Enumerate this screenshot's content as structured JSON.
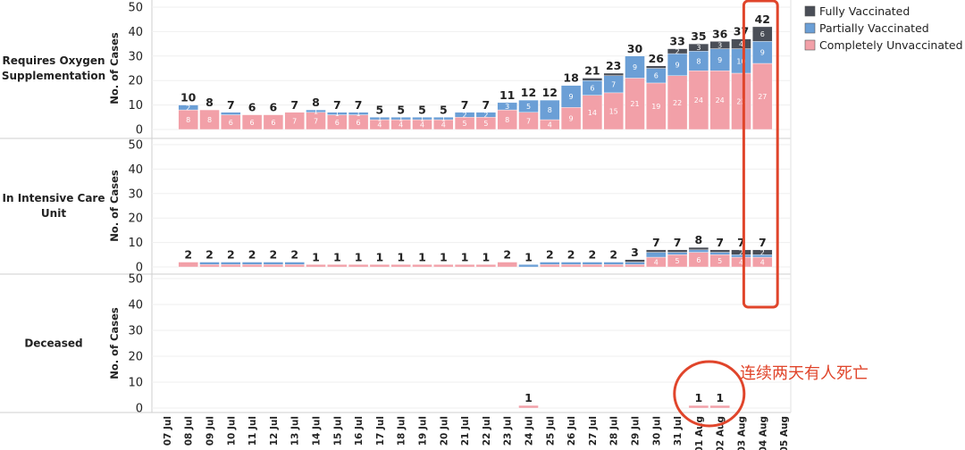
{
  "chart_data": {
    "type": "bar",
    "stacked": true,
    "ylabel": "No. of Cases",
    "ylim": [
      0,
      50
    ],
    "yticks": [
      0,
      10,
      20,
      30,
      40,
      50
    ],
    "grid": true,
    "legend_position": "top-right",
    "categories": [
      "07 Jul",
      "08 Jul",
      "09 Jul",
      "10 Jul",
      "11 Jul",
      "12 Jul",
      "13 Jul",
      "14 Jul",
      "15 Jul",
      "16 Jul",
      "17 Jul",
      "18 Jul",
      "19 Jul",
      "20 Jul",
      "21 Jul",
      "22 Jul",
      "23 Jul",
      "24 Jul",
      "25 Jul",
      "26 Jul",
      "27 Jul",
      "28 Jul",
      "29 Jul",
      "30 Jul",
      "31 Jul",
      "01 Aug",
      "02 Aug",
      "03 Aug",
      "04 Aug",
      "05 Aug"
    ],
    "series_meta": [
      {
        "name": "Fully Vaccinated",
        "color": "#4a4e57"
      },
      {
        "name": "Partially Vaccinated",
        "color": "#6b9fd6"
      },
      {
        "name": "Completely Unvaccinated",
        "color": "#f2a0a8"
      }
    ],
    "panels": [
      {
        "label": "Requires Oxygen\nSupplementation",
        "series": [
          {
            "name": "Completely Unvaccinated",
            "values": [
              0,
              8,
              8,
              6,
              6,
              6,
              7,
              7,
              6,
              6,
              4,
              4,
              4,
              4,
              5,
              5,
              8,
              7,
              4,
              9,
              14,
              15,
              21,
              19,
              22,
              24,
              24,
              23,
              27,
              0
            ]
          },
          {
            "name": "Partially Vaccinated",
            "values": [
              0,
              2,
              0,
              1,
              0,
              0,
              0,
              1,
              1,
              1,
              1,
              1,
              1,
              1,
              2,
              2,
              3,
              5,
              8,
              9,
              6,
              7,
              9,
              6,
              9,
              8,
              9,
              10,
              9,
              0
            ]
          },
          {
            "name": "Fully Vaccinated",
            "values": [
              0,
              0,
              0,
              0,
              0,
              0,
              0,
              0,
              0,
              0,
              0,
              0,
              0,
              0,
              0,
              0,
              0,
              0,
              0,
              0,
              1,
              1,
              0,
              1,
              2,
              3,
              3,
              4,
              6,
              0
            ]
          }
        ],
        "totals": [
          null,
          10,
          8,
          7,
          6,
          6,
          7,
          8,
          7,
          7,
          5,
          5,
          5,
          5,
          7,
          7,
          11,
          12,
          12,
          18,
          21,
          23,
          30,
          26,
          33,
          35,
          36,
          37,
          42,
          null
        ],
        "segment_labels": {
          "Completely Unvaccinated": [
            null,
            "8",
            "8",
            "6",
            "6",
            "6",
            "7",
            "7",
            "6",
            "6",
            "4",
            "4",
            "4",
            "4",
            "5",
            "5",
            "8",
            "7",
            "4",
            "9",
            "14",
            "15",
            "21",
            "19",
            "22",
            "24",
            "24",
            "23",
            "27",
            null
          ],
          "Partially Vaccinated": [
            null,
            "2",
            null,
            null,
            null,
            null,
            null,
            "1",
            "1",
            "1",
            "1",
            "1",
            "1",
            "1",
            "2",
            "2",
            "3",
            "5",
            "8",
            "9",
            "6",
            "7",
            "9",
            "6",
            "9",
            "8",
            "9",
            "10",
            "9",
            null
          ],
          "Fully Vaccinated": [
            null,
            null,
            null,
            null,
            null,
            null,
            null,
            null,
            null,
            null,
            null,
            null,
            null,
            null,
            null,
            null,
            null,
            null,
            null,
            null,
            null,
            null,
            null,
            null,
            "2",
            "3",
            "3",
            "4",
            "6",
            null
          ]
        }
      },
      {
        "label": "In Intensive Care\nUnit",
        "series": [
          {
            "name": "Completely Unvaccinated",
            "values": [
              0,
              2,
              1,
              1,
              1,
              1,
              1,
              1,
              1,
              1,
              1,
              1,
              1,
              1,
              1,
              1,
              2,
              0,
              1,
              1,
              1,
              1,
              1,
              4,
              5,
              6,
              5,
              4,
              4,
              0
            ]
          },
          {
            "name": "Partially Vaccinated",
            "values": [
              0,
              0,
              1,
              1,
              1,
              1,
              1,
              0,
              0,
              0,
              0,
              0,
              0,
              0,
              0,
              0,
              0,
              1,
              1,
              1,
              1,
              1,
              1,
              2,
              1,
              1,
              1,
              1,
              1,
              0
            ]
          },
          {
            "name": "Fully Vaccinated",
            "values": [
              0,
              0,
              0,
              0,
              0,
              0,
              0,
              0,
              0,
              0,
              0,
              0,
              0,
              0,
              0,
              0,
              0,
              0,
              0,
              0,
              0,
              0,
              1,
              1,
              1,
              1,
              1,
              2,
              2,
              0
            ]
          }
        ],
        "totals": [
          null,
          2,
          2,
          2,
          2,
          2,
          2,
          1,
          1,
          1,
          1,
          1,
          1,
          1,
          1,
          1,
          2,
          1,
          2,
          2,
          2,
          2,
          3,
          7,
          7,
          8,
          7,
          7,
          7,
          null
        ],
        "segment_labels": {
          "Completely Unvaccinated": [
            null,
            null,
            null,
            null,
            null,
            null,
            null,
            null,
            null,
            null,
            null,
            null,
            null,
            null,
            null,
            null,
            null,
            null,
            null,
            null,
            null,
            null,
            null,
            "4",
            "5",
            "6",
            "5",
            "4",
            "4",
            null
          ],
          "Partially Vaccinated": [
            null,
            null,
            null,
            null,
            null,
            null,
            null,
            null,
            null,
            null,
            null,
            null,
            null,
            null,
            null,
            null,
            null,
            null,
            null,
            null,
            null,
            null,
            null,
            null,
            null,
            null,
            null,
            null,
            null,
            null
          ],
          "Fully Vaccinated": [
            null,
            null,
            null,
            null,
            null,
            null,
            null,
            null,
            null,
            null,
            null,
            null,
            null,
            null,
            null,
            null,
            null,
            null,
            null,
            null,
            null,
            null,
            null,
            null,
            null,
            null,
            null,
            "2",
            "2",
            null
          ]
        }
      },
      {
        "label": "Deceased",
        "series": [
          {
            "name": "Completely Unvaccinated",
            "values": [
              0,
              0,
              0,
              0,
              0,
              0,
              0,
              0,
              0,
              0,
              0,
              0,
              0,
              0,
              0,
              0,
              0,
              1,
              0,
              0,
              0,
              0,
              0,
              0,
              0,
              1,
              1,
              0,
              0,
              0
            ]
          },
          {
            "name": "Partially Vaccinated",
            "values": [
              0,
              0,
              0,
              0,
              0,
              0,
              0,
              0,
              0,
              0,
              0,
              0,
              0,
              0,
              0,
              0,
              0,
              0,
              0,
              0,
              0,
              0,
              0,
              0,
              0,
              0,
              0,
              0,
              0,
              0
            ]
          },
          {
            "name": "Fully Vaccinated",
            "values": [
              0,
              0,
              0,
              0,
              0,
              0,
              0,
              0,
              0,
              0,
              0,
              0,
              0,
              0,
              0,
              0,
              0,
              0,
              0,
              0,
              0,
              0,
              0,
              0,
              0,
              0,
              0,
              0,
              0,
              0
            ]
          }
        ],
        "totals": [
          null,
          null,
          null,
          null,
          null,
          null,
          null,
          null,
          null,
          null,
          null,
          null,
          null,
          null,
          null,
          null,
          null,
          1,
          null,
          null,
          null,
          null,
          null,
          null,
          null,
          1,
          1,
          null,
          null,
          null
        ],
        "segment_labels": {
          "Completely Unvaccinated": [],
          "Partially Vaccinated": [],
          "Fully Vaccinated": []
        }
      }
    ],
    "annotations": {
      "highlight_category": "04 Aug",
      "highlight_color": "#e0452b",
      "circle_categories": [
        "01 Aug",
        "02 Aug"
      ],
      "note": "连续两天有人死亡"
    }
  }
}
